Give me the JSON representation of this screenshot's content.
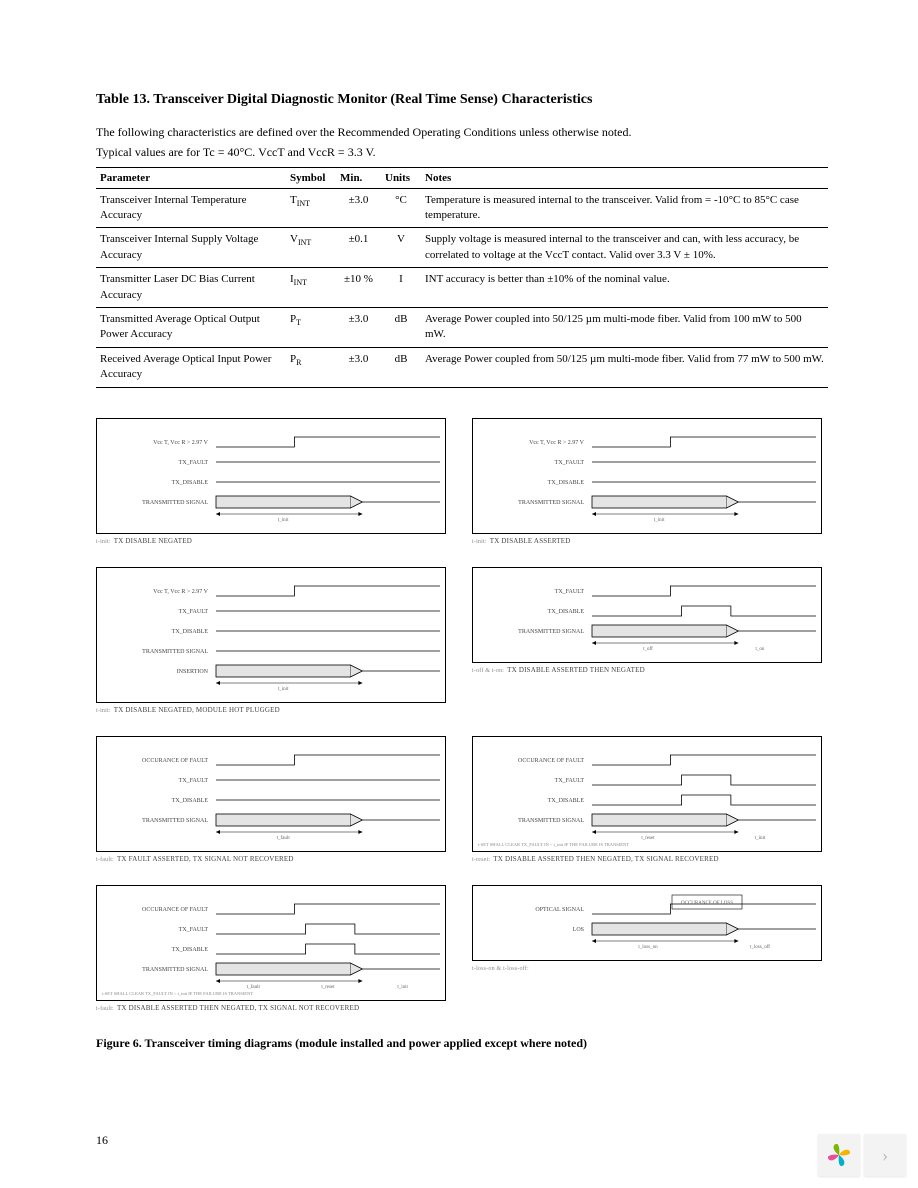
{
  "title": "Table 13. Transceiver Digital Diagnostic Monitor (Real Time Sense) Characteristics",
  "intro1": "The following characteristics are defined over the Recommended Operating Conditions unless otherwise noted.",
  "intro2": "Typical values are for Tc = 40°C. VccT and VccR = 3.3 V.",
  "headers": {
    "param": "Parameter",
    "symbol": "Symbol",
    "min": "Min.",
    "units": "Units",
    "notes": "Notes"
  },
  "rows": [
    {
      "param": "Transceiver Internal Temperature Accuracy",
      "symbol": "T",
      "sub": "INT",
      "min": "±3.0",
      "units": "°C",
      "notes": "Temperature is measured internal to the transceiver. Valid from =  -10°C to 85°C case temperature."
    },
    {
      "param": "Transceiver Internal Supply Voltage Accuracy",
      "symbol": "V",
      "sub": "INT",
      "min": "±0.1",
      "units": "V",
      "notes": "Supply voltage is measured internal to the transceiver and can, with less accuracy, be correlated to voltage at the VccT contact. Valid over 3.3 V ± 10%."
    },
    {
      "param": "Transmitter Laser DC Bias Current Accuracy",
      "symbol": "I",
      "sub": "INT",
      "min": "±10 %",
      "units": "I",
      "notes": "INT accuracy is better than ±10% of the nominal value."
    },
    {
      "param": "Transmitted Average Optical Output Power Accuracy",
      "symbol": "P",
      "sub": "T",
      "min": "±3.0",
      "units": "dB",
      "notes": "Average Power coupled into 50/125 µm multi-mode fiber. Valid from 100     mW to 500 mW."
    },
    {
      "param": "Received Average Optical Input Power Accuracy",
      "symbol": "P",
      "sub": "R",
      "min": "±3.0",
      "units": "dB",
      "notes": "Average Power coupled from 50/125 µm multi-mode fiber. Valid from 77     mW to 500 mW."
    }
  ],
  "diagrams": {
    "frame_stroke": "#000000",
    "signal_stroke": "#000000",
    "fill_band": "#e4e4e4",
    "label_color": "#444444",
    "label_size": 6,
    "panels": [
      {
        "caption_lead": "t-init:",
        "caption": "TX DISABLE NEGATED",
        "row_labels": [
          "Vcc T, Vcc R > 2.97 V",
          "TX_FAULT",
          "TX_DISABLE",
          "TRANSMITTED SIGNAL"
        ],
        "bottom_label": "t_init"
      },
      {
        "caption_lead": "t-init:",
        "caption": "TX DISABLE ASSERTED",
        "row_labels": [
          "Vcc T, Vcc R > 2.97 V",
          "TX_FAULT",
          "TX_DISABLE",
          "TRANSMITTED SIGNAL"
        ],
        "bottom_label": "t_init"
      },
      {
        "caption_lead": "t-init:",
        "caption": "TX DISABLE NEGATED, MODULE HOT PLUGGED",
        "row_labels": [
          "Vcc T, Vcc R > 2.97 V",
          "TX_FAULT",
          "TX_DISABLE",
          "TRANSMITTED SIGNAL",
          "INSERTION"
        ],
        "bottom_label": "t_init"
      },
      {
        "caption_lead": "t-off & t-on:",
        "caption": "TX DISABLE ASSERTED THEN NEGATED",
        "row_labels": [
          "TX_FAULT",
          "TX_DISABLE",
          "TRANSMITTED SIGNAL"
        ],
        "bottom_labels": [
          "t_off",
          "t_on"
        ]
      },
      {
        "caption_lead": "t-fault:",
        "caption": "TX FAULT ASSERTED, TX SIGNAL NOT RECOVERED",
        "row_labels": [
          "OCCURANCE OF FAULT",
          "TX_FAULT",
          "TX_DISABLE",
          "TRANSMITTED SIGNAL"
        ],
        "bottom_label": "t_fault"
      },
      {
        "caption_lead": "t-reset:",
        "caption": "TX DISABLE ASSERTED THEN NEGATED, TX SIGNAL RECOVERED",
        "row_labels": [
          "OCCURANCE OF FAULT",
          "TX_FAULT",
          "TX_DISABLE",
          "TRANSMITTED SIGNAL"
        ],
        "bottom_labels": [
          "t_reset",
          "t_init"
        ],
        "note": "t-SET SHALL CLEAR TX_FAULT IN < t_init IF THE FAILURE IS TRANSIENT"
      },
      {
        "caption_lead": "t-fault:",
        "caption": "TX DISABLE ASSERTED THEN NEGATED, TX SIGNAL NOT RECOVERED",
        "row_labels": [
          "OCCURANCE OF FAULT",
          "TX_FAULT",
          "TX_DISABLE",
          "TRANSMITTED SIGNAL"
        ],
        "bottom_labels": [
          "t_fault",
          "t_reset",
          "t_init"
        ],
        "note": "t-SET SHALL CLEAR TX_FAULT IN < t_init IF THE FAILURE IS TRANSIENT"
      },
      {
        "caption_lead": "t-loss-on & t-loss-off:",
        "caption": "",
        "row_labels": [
          "OPTICAL SIGNAL",
          "LOS"
        ],
        "inset": "OCCURANCE OF LOSS",
        "bottom_labels": [
          "t_loss_on",
          "t_loss_off"
        ]
      }
    ]
  },
  "figure_caption": "Figure 6. Transceiver timing diagrams (module installed and power applied except where noted)",
  "page_number": "16",
  "logo_colors": {
    "tl": "#7db500",
    "tr": "#f6b400",
    "bl": "#e84f9a",
    "br": "#00b1c9"
  }
}
